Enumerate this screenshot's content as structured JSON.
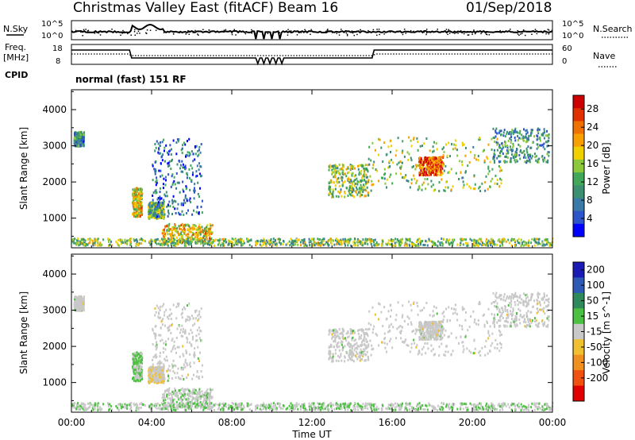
{
  "header": {
    "title": "Christmas Valley East (fitACF)",
    "beam": "Beam 16",
    "date": "01/Sep/2018"
  },
  "panels": {
    "nsky": {
      "label": "N.Sky",
      "left_ticks": [
        "10^5",
        "10^0"
      ],
      "right_ticks": [
        "10^5",
        "10^0"
      ],
      "right_label": "N.Search"
    },
    "freq": {
      "label_line1": "Freq.",
      "label_line2": "[MHz]",
      "left_ticks": [
        "18",
        "8"
      ],
      "right_ticks": [
        "60",
        "0"
      ],
      "right_label": "Nave",
      "cpid_label": "CPID"
    },
    "cpid_text": "normal (fast) 151 RF"
  },
  "power_panel": {
    "ylabel": "Slant Range [km]",
    "yticks": [
      "4000",
      "3000",
      "2000",
      "1000"
    ],
    "colorbar_label": "Power [dB]",
    "colorbar_ticks": [
      "28",
      "24",
      "20",
      "16",
      "12",
      "8",
      "4"
    ],
    "colors": [
      "#0000ff",
      "#2b55c8",
      "#3a7aa8",
      "#3c8f70",
      "#41a85a",
      "#8cc83c",
      "#f0d000",
      "#f8a000",
      "#f07000",
      "#e03000",
      "#cc0000"
    ]
  },
  "velocity_panel": {
    "ylabel": "Slant Range [km]",
    "yticks": [
      "4000",
      "3000",
      "2000",
      "1000"
    ],
    "colorbar_label": "Velocity [m s^-1]",
    "colorbar_ticks": [
      "200",
      "100",
      "50",
      "15",
      "-15",
      "-50",
      "-100",
      "-200"
    ],
    "colors": [
      "#1a1ab4",
      "#2c5ab4",
      "#2e8a5a",
      "#4cc040",
      "#c8c8c8",
      "#f0c030",
      "#f09020",
      "#f05010",
      "#e00000"
    ]
  },
  "xaxis": {
    "ticks": [
      "00:00",
      "04:00",
      "08:00",
      "12:00",
      "16:00",
      "20:00",
      "00:00"
    ],
    "label": "Time UT"
  },
  "chart_data": {
    "type": "heatmap",
    "title": "Christmas Valley East (fitACF)",
    "subtitle": "Beam 16",
    "date": "01/Sep/2018",
    "xlabel": "Time UT",
    "x_range_hours": [
      0,
      24
    ],
    "ylabel": "Slant Range [km]",
    "ylim": [
      180,
      4550
    ],
    "panels": [
      {
        "name": "Power [dB]",
        "zlim": [
          0,
          31
        ],
        "colorbar_ticks": [
          4,
          8,
          12,
          16,
          20,
          24,
          28
        ]
      },
      {
        "name": "Velocity [m s^-1]",
        "zlim": [
          -250,
          250
        ],
        "colorbar_ticks": [
          200,
          100,
          50,
          15,
          -15,
          -50,
          -100,
          -200
        ]
      }
    ],
    "echo_regions": [
      {
        "t": [
          0.1,
          0.6
        ],
        "r": [
          2950,
          3350
        ],
        "power": 9,
        "velocity": 0
      },
      {
        "t": [
          3.0,
          3.5
        ],
        "r": [
          1000,
          1800
        ],
        "power": 19,
        "velocity": 30
      },
      {
        "t": [
          3.8,
          4.6
        ],
        "r": [
          950,
          1400
        ],
        "power": 13,
        "velocity": -20
      },
      {
        "t": [
          4.0,
          6.5
        ],
        "r": [
          1000,
          3150
        ],
        "power": 7,
        "velocity": 0
      },
      {
        "t": [
          4.5,
          7.0
        ],
        "r": [
          300,
          800
        ],
        "power": 20,
        "velocity": 10
      },
      {
        "t": [
          12.8,
          14.8
        ],
        "r": [
          1550,
          2450
        ],
        "power": 15,
        "velocity": 0
      },
      {
        "t": [
          14.8,
          21.5
        ],
        "r": [
          1700,
          3200
        ],
        "power": 15,
        "velocity": 0
      },
      {
        "t": [
          17.3,
          18.5
        ],
        "r": [
          2150,
          2650
        ],
        "power": 25,
        "velocity": 0
      },
      {
        "t": [
          21.0,
          23.8
        ],
        "r": [
          2500,
          3450
        ],
        "power": 10,
        "velocity": 0
      },
      {
        "t": [
          0,
          24
        ],
        "r": [
          200,
          400
        ],
        "power": 14,
        "velocity": 20
      }
    ]
  }
}
